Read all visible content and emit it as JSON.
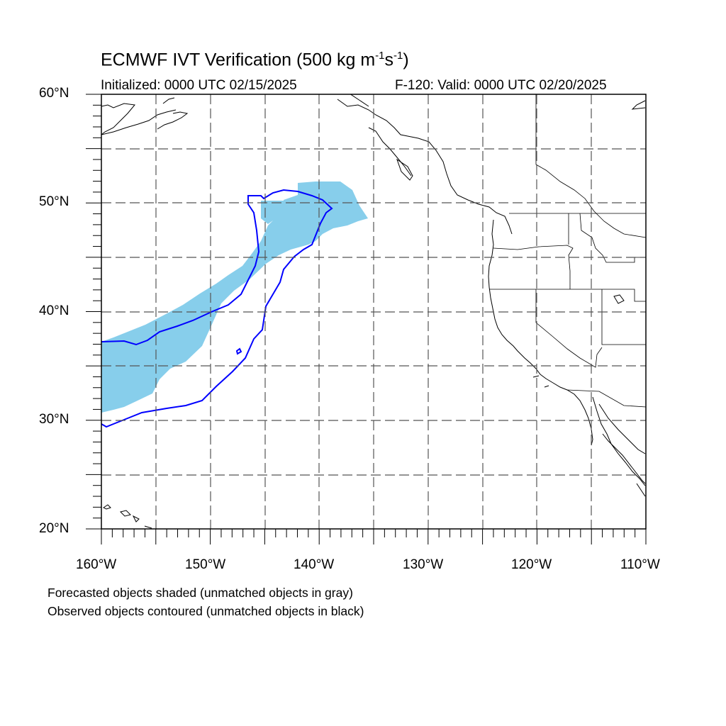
{
  "title": {
    "main": "ECMWF IVT Verification (500 kg m",
    "sup1": "-1",
    "mid": "s",
    "sup2": "-1",
    "end": ")"
  },
  "subtitle_left": "Initialized: 0000 UTC 02/15/2025",
  "subtitle_right": "F-120: Valid: 0000 UTC 02/20/2025",
  "lat_labels": [
    "60°N",
    "50°N",
    "40°N",
    "30°N",
    "20°N"
  ],
  "lon_labels": [
    "160°W",
    "150°W",
    "140°W",
    "130°W",
    "120°W",
    "110°W"
  ],
  "footnotes": [
    "Forecasted objects shaded (unmatched objects in gray)",
    "Observed objects contoured (unmatched objects in black)"
  ],
  "colors": {
    "forecast_fill": "#87ceeb",
    "observed_contour": "#0000ff",
    "coastline": "#000000",
    "grid": "#555555"
  },
  "map_extent": {
    "lon_min": -160,
    "lon_max": -110,
    "lat_min": 20,
    "lat_max": 60
  }
}
